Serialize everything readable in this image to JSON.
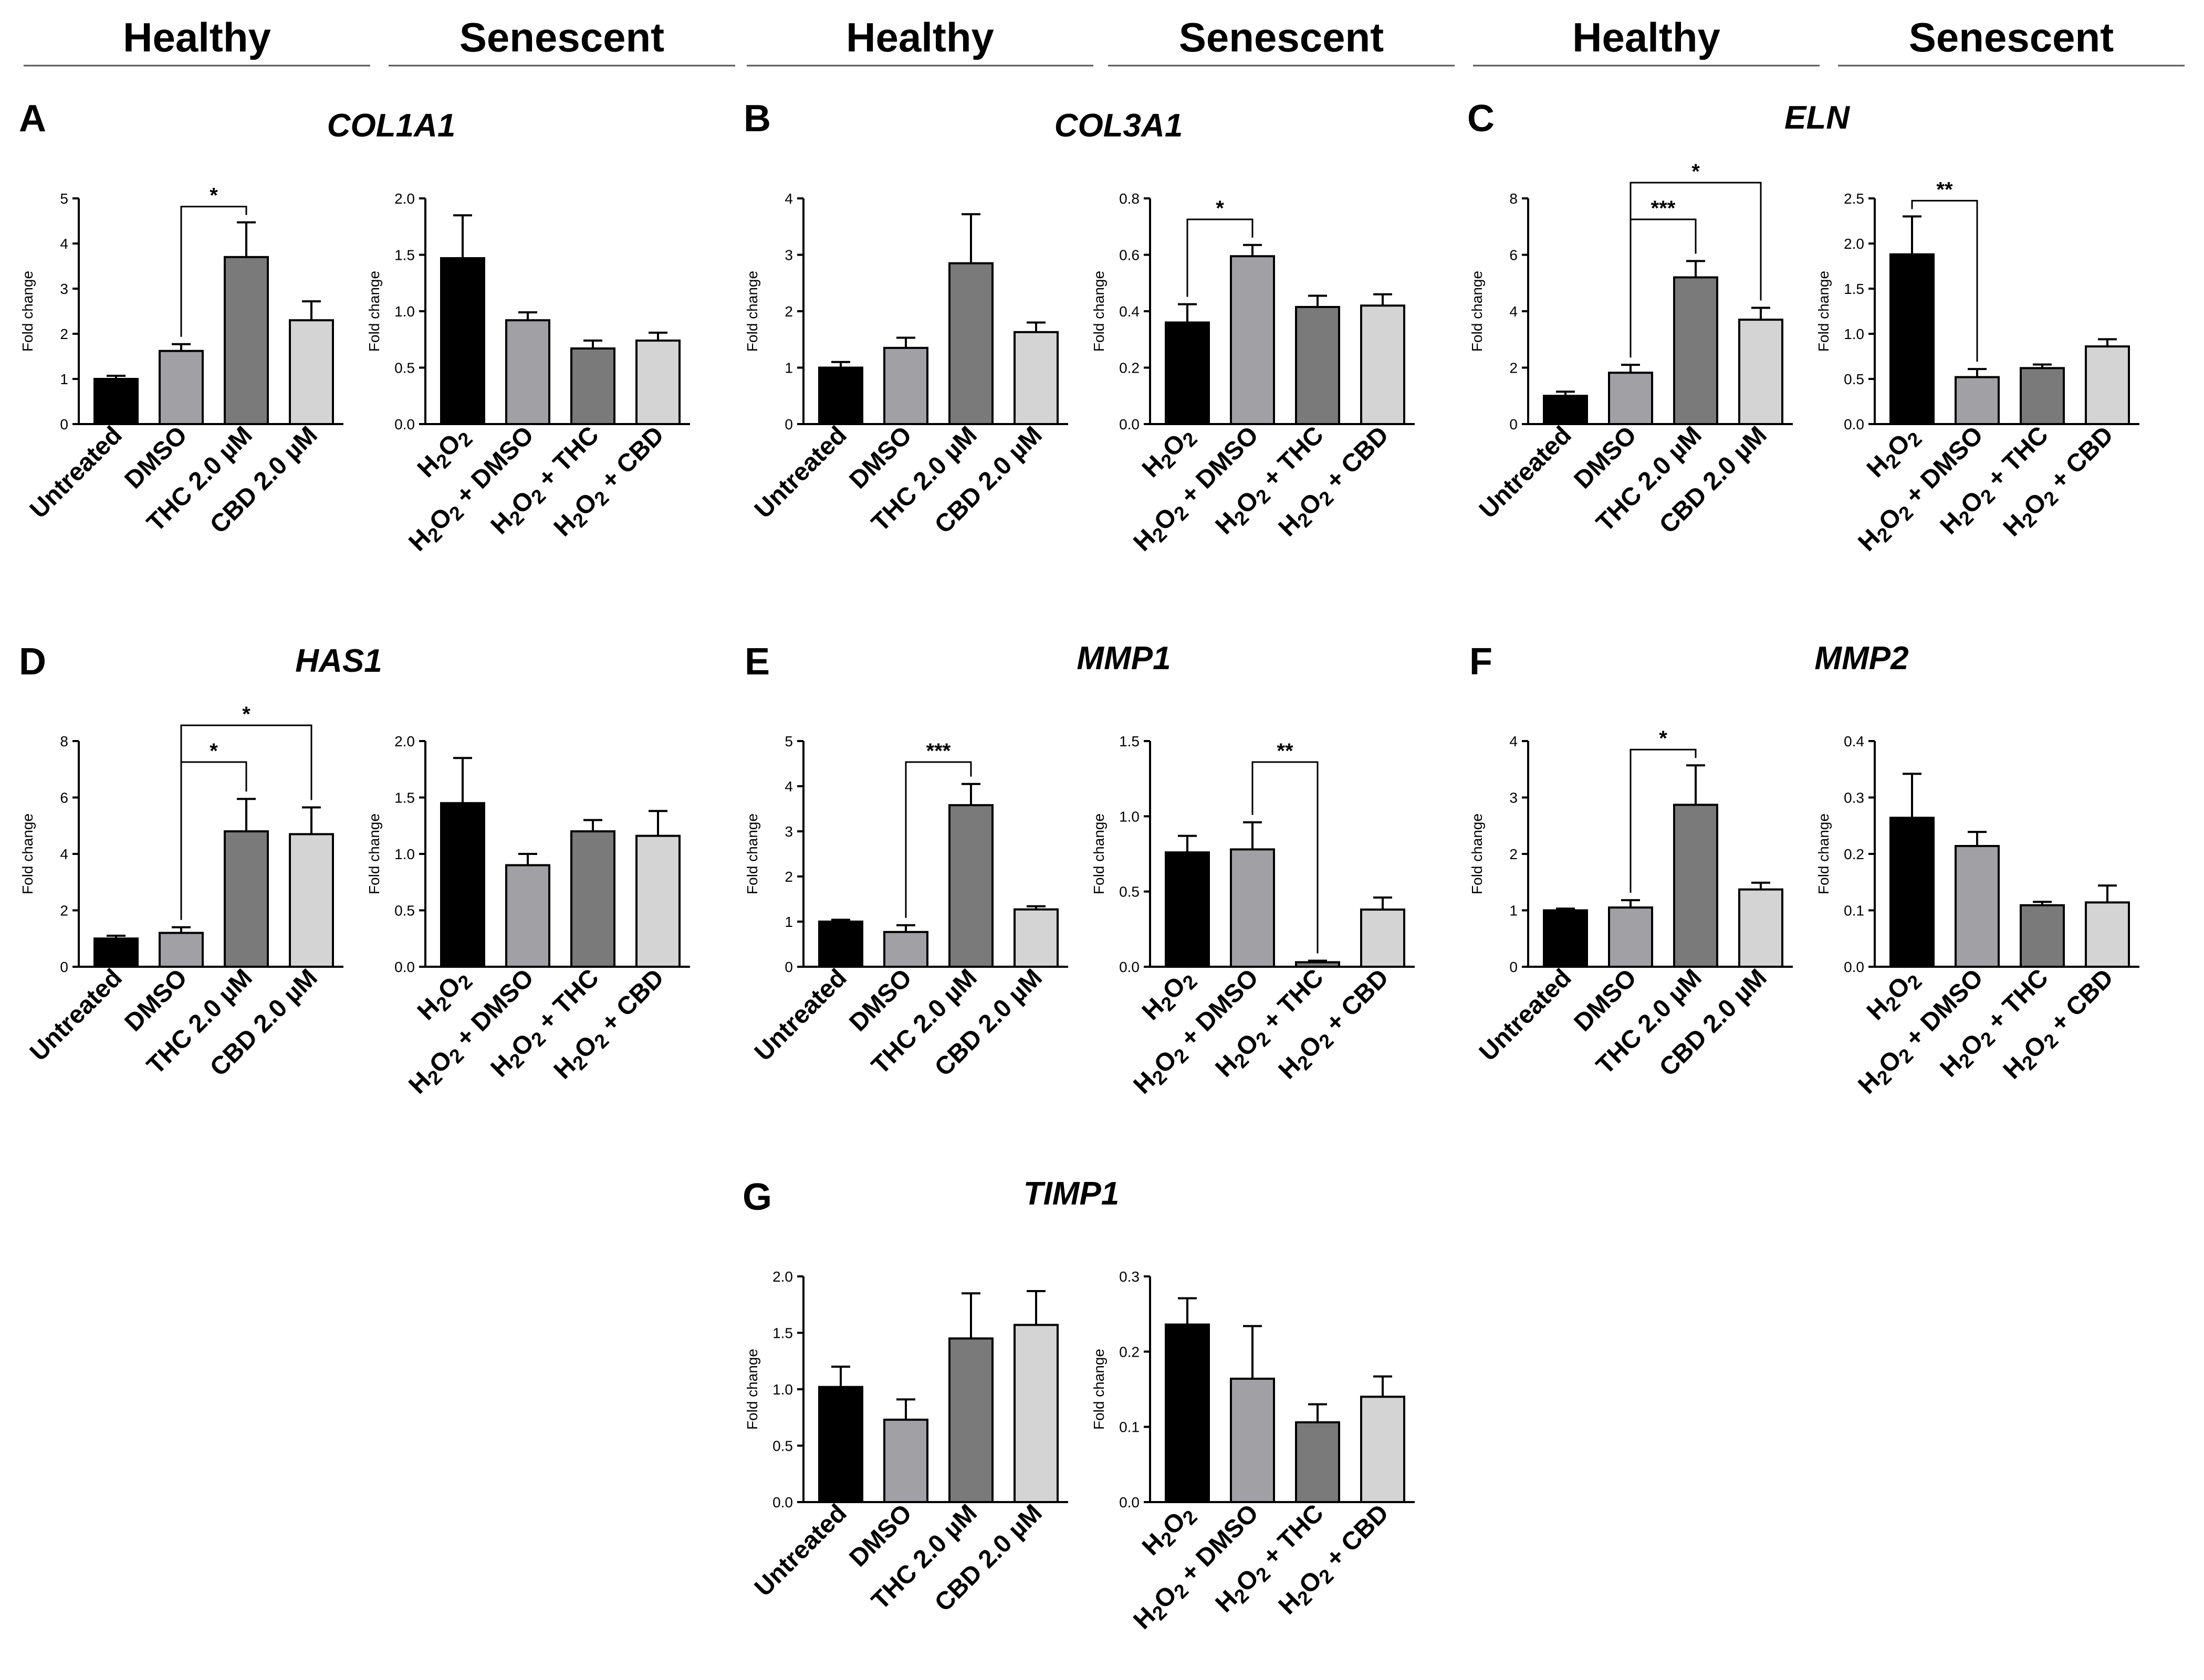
{
  "headers": [
    "Healthy",
    "Senescent",
    "Healthy",
    "Senescent",
    "Healthy",
    "Senescent"
  ],
  "colors": {
    "untreated": "#000000",
    "dmso": "#a0a0a5",
    "thc": "#7a7a7a",
    "cbd": "#d4d4d4",
    "axis": "#000000"
  },
  "chart_data": [
    {
      "panel": "A",
      "title": "COL1A1",
      "type": "bar",
      "ylabel": "Fold change",
      "left": {
        "group": "Healthy",
        "categories": [
          "Untreated",
          "DMSO",
          "THC 2.0 µM",
          "CBD 2.0 µM"
        ],
        "values": [
          1.0,
          1.62,
          3.7,
          2.3
        ],
        "errors": [
          0.07,
          0.15,
          0.77,
          0.42
        ],
        "ylim": [
          0,
          5
        ],
        "yticks": [
          "0",
          "1",
          "2",
          "3",
          "4",
          "5"
        ],
        "sig": [
          {
            "from": 1,
            "to": 2,
            "label": "*"
          }
        ]
      },
      "right": {
        "group": "Senescent",
        "categories": [
          "H2O2",
          "H2O2 + DMSO",
          "H2O2 + THC",
          "H2O2 + CBD"
        ],
        "values": [
          1.47,
          0.92,
          0.67,
          0.74
        ],
        "errors": [
          0.38,
          0.07,
          0.07,
          0.07
        ],
        "ylim": [
          0,
          2.0
        ],
        "yticks": [
          "0.0",
          "0.5",
          "1.0",
          "1.5",
          "2.0"
        ],
        "sig": []
      }
    },
    {
      "panel": "B",
      "title": "COL3A1",
      "type": "bar",
      "ylabel": "Fold change",
      "left": {
        "group": "Healthy",
        "categories": [
          "Untreated",
          "DMSO",
          "THC 2.0 µM",
          "CBD 2.0 µM"
        ],
        "values": [
          1.0,
          1.35,
          2.85,
          1.63
        ],
        "errors": [
          0.1,
          0.18,
          0.87,
          0.17
        ],
        "ylim": [
          0,
          4
        ],
        "yticks": [
          "0",
          "1",
          "2",
          "3",
          "4"
        ],
        "sig": []
      },
      "right": {
        "group": "Senescent",
        "categories": [
          "H2O2",
          "H2O2 + DMSO",
          "H2O2 + THC",
          "H2O2 + CBD"
        ],
        "values": [
          0.36,
          0.595,
          0.415,
          0.42
        ],
        "errors": [
          0.065,
          0.04,
          0.04,
          0.04
        ],
        "ylim": [
          0,
          0.8
        ],
        "yticks": [
          "0.0",
          "0.2",
          "0.4",
          "0.6",
          "0.8"
        ],
        "sig": [
          {
            "from": 0,
            "to": 1,
            "label": "*"
          }
        ]
      }
    },
    {
      "panel": "C",
      "title": "ELN",
      "type": "bar",
      "ylabel": "Fold change",
      "left": {
        "group": "Healthy",
        "categories": [
          "Untreated",
          "DMSO",
          "THC 2.0 µM",
          "CBD 2.0 µM"
        ],
        "values": [
          1.0,
          1.82,
          5.2,
          3.7
        ],
        "errors": [
          0.15,
          0.28,
          0.58,
          0.42
        ],
        "ylim": [
          0,
          8
        ],
        "yticks": [
          "0",
          "2",
          "4",
          "6",
          "8"
        ],
        "sig": [
          {
            "from": 1,
            "to": 2,
            "label": "***"
          },
          {
            "from": 1,
            "to": 3,
            "label": "*"
          }
        ]
      },
      "right": {
        "group": "Senescent",
        "categories": [
          "H2O2",
          "H2O2 + DMSO",
          "H2O2 + THC",
          "H2O2 + CBD"
        ],
        "values": [
          1.88,
          0.52,
          0.62,
          0.86
        ],
        "errors": [
          0.42,
          0.09,
          0.04,
          0.08
        ],
        "ylim": [
          0,
          2.5
        ],
        "yticks": [
          "0.0",
          "0.5",
          "1.0",
          "1.5",
          "2.0",
          "2.5"
        ],
        "sig": [
          {
            "from": 0,
            "to": 1,
            "label": "**"
          }
        ]
      }
    },
    {
      "panel": "D",
      "title": "HAS1",
      "type": "bar",
      "ylabel": "Fold change",
      "left": {
        "group": "Healthy",
        "categories": [
          "Untreated",
          "DMSO",
          "THC 2.0 µM",
          "CBD 2.0 µM"
        ],
        "values": [
          1.0,
          1.2,
          4.8,
          4.7
        ],
        "errors": [
          0.1,
          0.2,
          1.15,
          0.95
        ],
        "ylim": [
          0,
          8
        ],
        "yticks": [
          "0",
          "2",
          "4",
          "6",
          "8"
        ],
        "sig": [
          {
            "from": 1,
            "to": 2,
            "label": "*"
          },
          {
            "from": 1,
            "to": 3,
            "label": "*"
          }
        ]
      },
      "right": {
        "group": "Senescent",
        "categories": [
          "H2O2",
          "H2O2 + DMSO",
          "H2O2 + THC",
          "H2O2 + CBD"
        ],
        "values": [
          1.45,
          0.9,
          1.2,
          1.16
        ],
        "errors": [
          0.4,
          0.1,
          0.1,
          0.22
        ],
        "ylim": [
          0,
          2.0
        ],
        "yticks": [
          "0.0",
          "0.5",
          "1.0",
          "1.5",
          "2.0"
        ],
        "sig": []
      }
    },
    {
      "panel": "E",
      "title": "MMP1",
      "type": "bar",
      "ylabel": "Fold change",
      "left": {
        "group": "Healthy",
        "categories": [
          "Untreated",
          "DMSO",
          "THC 2.0 µM",
          "CBD 2.0 µM"
        ],
        "values": [
          1.0,
          0.77,
          3.58,
          1.27
        ],
        "errors": [
          0.04,
          0.15,
          0.47,
          0.07
        ],
        "ylim": [
          0,
          5
        ],
        "yticks": [
          "0",
          "1",
          "2",
          "3",
          "4",
          "5"
        ],
        "sig": [
          {
            "from": 1,
            "to": 2,
            "label": "***"
          }
        ]
      },
      "right": {
        "group": "Senescent",
        "categories": [
          "H2O2",
          "H2O2 + DMSO",
          "H2O2 + THC",
          "H2O2 + CBD"
        ],
        "values": [
          0.76,
          0.78,
          0.03,
          0.38
        ],
        "errors": [
          0.11,
          0.18,
          0.01,
          0.08
        ],
        "ylim": [
          0,
          1.5
        ],
        "yticks": [
          "0.0",
          "0.5",
          "1.0",
          "1.5"
        ],
        "sig": [
          {
            "from": 1,
            "to": 2,
            "label": "**"
          }
        ]
      }
    },
    {
      "panel": "F",
      "title": "MMP2",
      "type": "bar",
      "ylabel": "Fold change",
      "left": {
        "group": "Healthy",
        "categories": [
          "Untreated",
          "DMSO",
          "THC 2.0 µM",
          "CBD 2.0 µM"
        ],
        "values": [
          1.0,
          1.05,
          2.87,
          1.37
        ],
        "errors": [
          0.03,
          0.13,
          0.7,
          0.12
        ],
        "ylim": [
          0,
          4
        ],
        "yticks": [
          "0",
          "1",
          "2",
          "3",
          "4"
        ],
        "sig": [
          {
            "from": 1,
            "to": 2,
            "label": "*"
          }
        ]
      },
      "right": {
        "group": "Senescent",
        "categories": [
          "H2O2",
          "H2O2 + DMSO",
          "H2O2 + THC",
          "H2O2 + CBD"
        ],
        "values": [
          0.264,
          0.214,
          0.109,
          0.114
        ],
        "errors": [
          0.078,
          0.025,
          0.006,
          0.03
        ],
        "ylim": [
          0,
          0.4
        ],
        "yticks": [
          "0.0",
          "0.1",
          "0.2",
          "0.3",
          "0.4"
        ],
        "sig": []
      }
    },
    {
      "panel": "G",
      "title": "TIMP1",
      "type": "bar",
      "ylabel": "Fold change",
      "left": {
        "group": "Healthy",
        "categories": [
          "Untreated",
          "DMSO",
          "THC 2.0 µM",
          "CBD 2.0 µM"
        ],
        "values": [
          1.02,
          0.73,
          1.45,
          1.57
        ],
        "errors": [
          0.18,
          0.18,
          0.4,
          0.3
        ],
        "ylim": [
          0,
          2.0
        ],
        "yticks": [
          "0.0",
          "0.5",
          "1.0",
          "1.5",
          "2.0"
        ],
        "sig": []
      },
      "right": {
        "group": "Senescent",
        "categories": [
          "H2O2",
          "H2O2 + DMSO",
          "H2O2 + THC",
          "H2O2 + CBD"
        ],
        "values": [
          0.236,
          0.164,
          0.106,
          0.14
        ],
        "errors": [
          0.035,
          0.07,
          0.024,
          0.027
        ],
        "ylim": [
          0,
          0.3
        ],
        "yticks": [
          "0.0",
          "0.1",
          "0.2",
          "0.3"
        ],
        "sig": []
      }
    }
  ]
}
